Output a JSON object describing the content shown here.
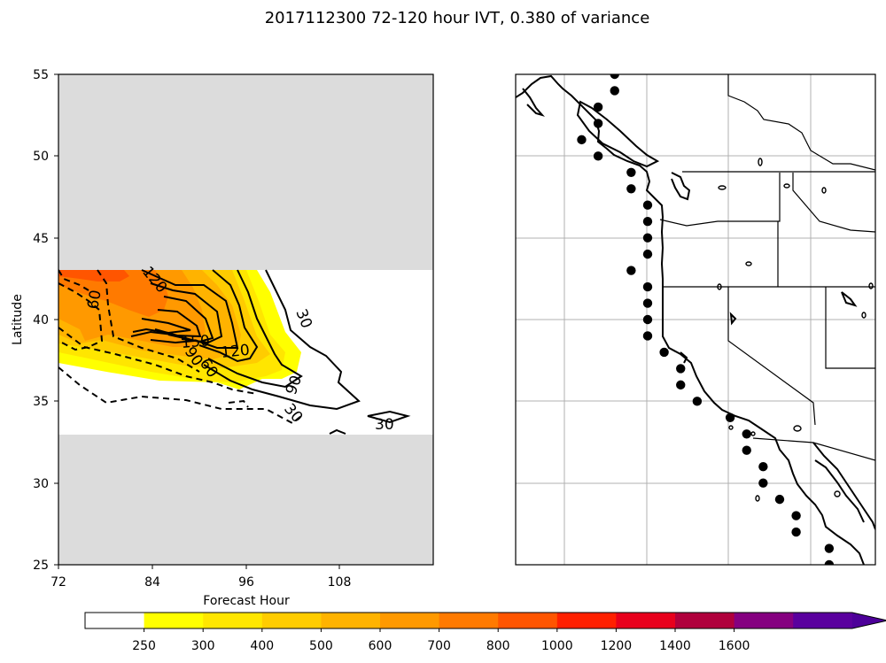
{
  "title": "2017112300 72-120 hour IVT, 0.380 of variance",
  "chart_data": [
    {
      "type": "contour",
      "title": "",
      "xlabel": "Forecast Hour",
      "ylabel": "Latitude",
      "xlim": [
        72,
        120
      ],
      "ylim": [
        25,
        55
      ],
      "x_ticks": [
        "72",
        "84",
        "96",
        "108"
      ],
      "y_ticks": [
        "25",
        "30",
        "35",
        "40",
        "45",
        "50",
        "55"
      ],
      "data_extent_latitude": [
        33,
        43
      ],
      "contour_labels": [
        "120",
        "60",
        "30",
        "150",
        "120",
        "90",
        "60",
        "90",
        "30",
        "30"
      ],
      "solid_contours_meaning": "positive",
      "dashed_contours_meaning": "negative"
    },
    {
      "type": "map",
      "region": "West Coast of North America",
      "points": [
        [
          -124.0,
          55.0
        ],
        [
          -124.0,
          54.0
        ],
        [
          -125.0,
          53.0
        ],
        [
          -125.0,
          52.0
        ],
        [
          -126.0,
          51.0
        ],
        [
          -125.0,
          50.0
        ],
        [
          -123.0,
          49.0
        ],
        [
          -123.0,
          48.0
        ],
        [
          -122.0,
          47.0
        ],
        [
          -122.0,
          46.0
        ],
        [
          -122.0,
          45.0
        ],
        [
          -122.0,
          44.0
        ],
        [
          -123.0,
          43.0
        ],
        [
          -122.0,
          42.0
        ],
        [
          -122.0,
          41.0
        ],
        [
          -122.0,
          40.0
        ],
        [
          -122.0,
          39.0
        ],
        [
          -121.0,
          38.0
        ],
        [
          -120.0,
          37.0
        ],
        [
          -120.0,
          36.0
        ],
        [
          -119.0,
          35.0
        ],
        [
          -117.0,
          34.0
        ],
        [
          -116.0,
          33.0
        ],
        [
          -116.0,
          32.0
        ],
        [
          -115.0,
          31.0
        ],
        [
          -115.0,
          30.0
        ],
        [
          -114.0,
          29.0
        ],
        [
          -113.0,
          28.0
        ],
        [
          -113.0,
          27.0
        ],
        [
          -111.0,
          26.0
        ],
        [
          -111.0,
          25.0
        ]
      ]
    }
  ],
  "colorbar": {
    "labels": [
      "250",
      "300",
      "400",
      "500",
      "600",
      "700",
      "800",
      "1000",
      "1200",
      "1400",
      "1600"
    ],
    "colors": [
      "#ffffff",
      "#ffff00",
      "#ffe600",
      "#ffcc00",
      "#ffb300",
      "#ff9900",
      "#ff7a00",
      "#ff5500",
      "#ff2000",
      "#e8001c",
      "#b0003c",
      "#850080",
      "#5a009e"
    ],
    "extend": "max"
  }
}
